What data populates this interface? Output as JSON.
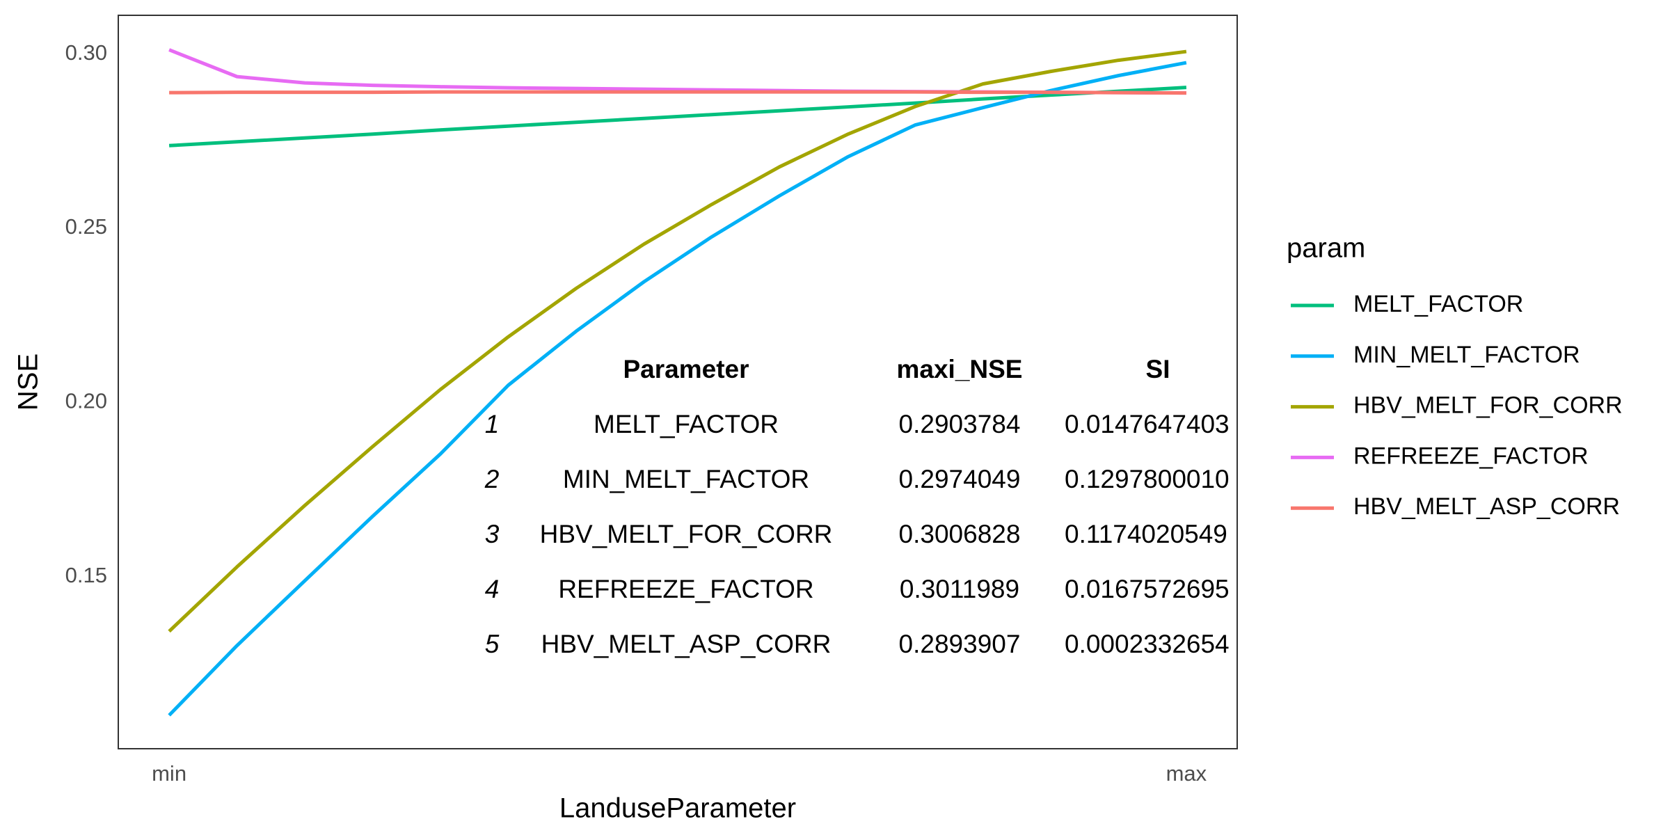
{
  "chart_data": {
    "type": "line",
    "x_label": "LanduseParameter",
    "y_label": "NSE",
    "x": [
      0,
      0.0667,
      0.1333,
      0.2,
      0.2667,
      0.3333,
      0.4,
      0.4667,
      0.5333,
      0.6,
      0.6667,
      0.7333,
      0.8,
      0.8667,
      0.9333,
      1
    ],
    "xlim": [
      -0.05,
      1.05
    ],
    "xticks": [
      {
        "value": 0,
        "label": "min"
      },
      {
        "value": 1,
        "label": "max"
      }
    ],
    "minor_xticks": [
      0.5
    ],
    "ylim": [
      0.1006,
      0.3111
    ],
    "yticks": [
      {
        "value": 0.15,
        "label": "0.15"
      },
      {
        "value": 0.2,
        "label": "0.20"
      },
      {
        "value": 0.25,
        "label": "0.25"
      },
      {
        "value": 0.3,
        "label": "0.30"
      }
    ],
    "minor_yticks": [
      0.125,
      0.175,
      0.225,
      0.275
    ],
    "grid": true,
    "legend_title": "param",
    "legend_position": "right",
    "series": [
      {
        "name": "MELT_FACTOR",
        "color": "#00BF7D",
        "values": [
          0.2737,
          0.2748,
          0.2759,
          0.277,
          0.2782,
          0.2793,
          0.2804,
          0.2815,
          0.2826,
          0.2837,
          0.2848,
          0.2859,
          0.2871,
          0.2882,
          0.2893,
          0.2904
        ]
      },
      {
        "name": "MIN_MELT_FACTOR",
        "color": "#00B0F6",
        "values": [
          0.1102,
          0.1302,
          0.1488,
          0.1673,
          0.1852,
          0.2049,
          0.2204,
          0.2346,
          0.2475,
          0.2593,
          0.2704,
          0.2796,
          0.2846,
          0.2895,
          0.2938,
          0.2975
        ]
      },
      {
        "name": "HBV_MELT_FOR_CORR",
        "color": "#A3A500",
        "values": [
          0.1343,
          0.1528,
          0.1704,
          0.1873,
          0.2037,
          0.2188,
          0.2327,
          0.2454,
          0.2568,
          0.2676,
          0.2769,
          0.2849,
          0.2914,
          0.295,
          0.2982,
          0.3007
        ]
      },
      {
        "name": "REFREEZE_FACTOR",
        "color": "#E76BF3",
        "values": [
          0.3012,
          0.2935,
          0.2917,
          0.291,
          0.2906,
          0.2903,
          0.2901,
          0.2899,
          0.2897,
          0.2895,
          0.2893,
          0.2892,
          0.2891,
          0.289,
          0.2889,
          0.2888
        ]
      },
      {
        "name": "HBV_MELT_ASP_CORR",
        "color": "#F8766D",
        "values": [
          0.2889,
          0.289,
          0.289,
          0.289,
          0.2891,
          0.2891,
          0.2891,
          0.2891,
          0.2891,
          0.2891,
          0.2891,
          0.2891,
          0.289,
          0.289,
          0.2889,
          0.2888
        ]
      }
    ],
    "table": {
      "columns": [
        "Parameter",
        "maxi_NSE",
        "SI"
      ],
      "rows": [
        [
          "1",
          "MELT_FACTOR",
          "0.2903784",
          "0.0147647403"
        ],
        [
          "2",
          "MIN_MELT_FACTOR",
          "0.2974049",
          "0.1297800010"
        ],
        [
          "3",
          "HBV_MELT_FOR_CORR",
          "0.3006828",
          "0.1174020549"
        ],
        [
          "4",
          "REFREEZE_FACTOR",
          "0.3011989",
          "0.0167572695"
        ],
        [
          "5",
          "HBV_MELT_ASP_CORR",
          "0.2893907",
          "0.0002332654"
        ]
      ]
    }
  }
}
